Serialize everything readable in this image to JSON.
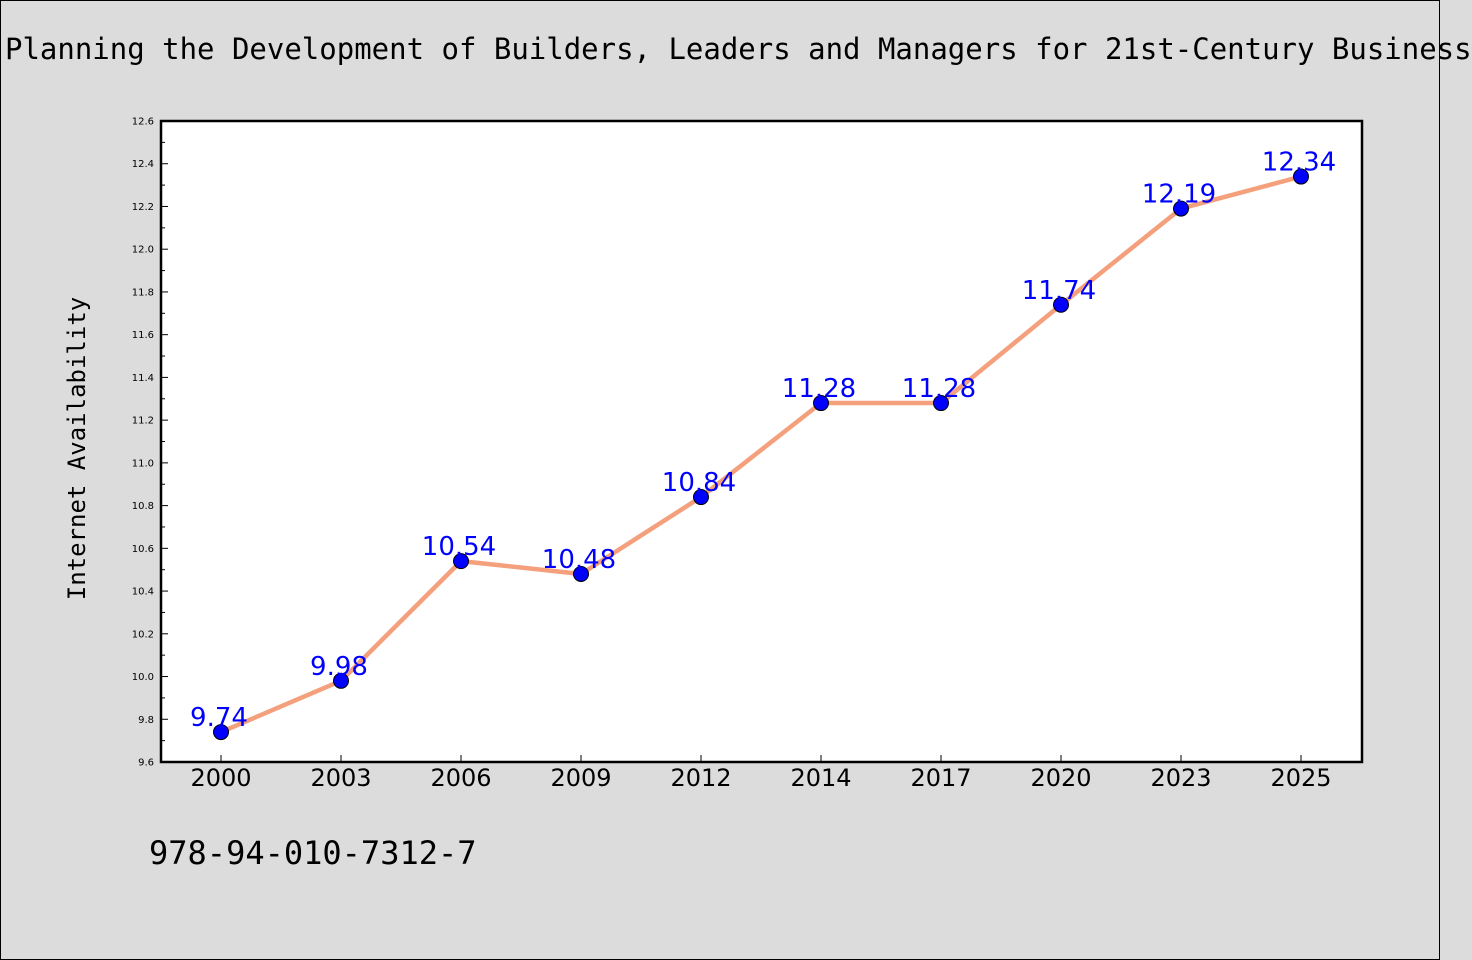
{
  "header": {
    "title": "Planning the Development of Builders, Leaders and Managers for 21st-Century Business"
  },
  "footer": {
    "isbn": "978-94-010-7312-7"
  },
  "chart_data": {
    "type": "line",
    "title": "Planning the Development of Builders, Leaders and Managers for 21st-Century Business",
    "xlabel": "",
    "ylabel": "Internet Availability",
    "categories": [
      "2000",
      "2003",
      "2006",
      "2009",
      "2012",
      "2014",
      "2017",
      "2020",
      "2023",
      "2025"
    ],
    "series": [
      {
        "name": "",
        "values": [
          9.74,
          9.98,
          10.54,
          10.48,
          10.84,
          11.28,
          11.28,
          11.74,
          12.19,
          12.34
        ],
        "data_labels": [
          "9.74",
          "9.98",
          "10.54",
          "10.48",
          "10.84",
          "11.28",
          "11.28",
          "11.74",
          "12.19",
          "12.34"
        ],
        "line_color": "#f4a07c",
        "marker_color": "#0000ff"
      }
    ],
    "ylim": [
      9.6,
      12.6
    ],
    "yticks": [
      "9.6",
      "9.8",
      "10.0",
      "10.2",
      "10.4",
      "10.6",
      "10.8",
      "11.0",
      "11.2",
      "11.4",
      "11.6",
      "11.8",
      "12.0",
      "12.2",
      "12.4",
      "12.6"
    ],
    "grid": false,
    "legend": "none",
    "colors": {
      "background": "#dcdcdc",
      "plot_background": "#ffffff",
      "label_color": "#0000ff"
    }
  }
}
